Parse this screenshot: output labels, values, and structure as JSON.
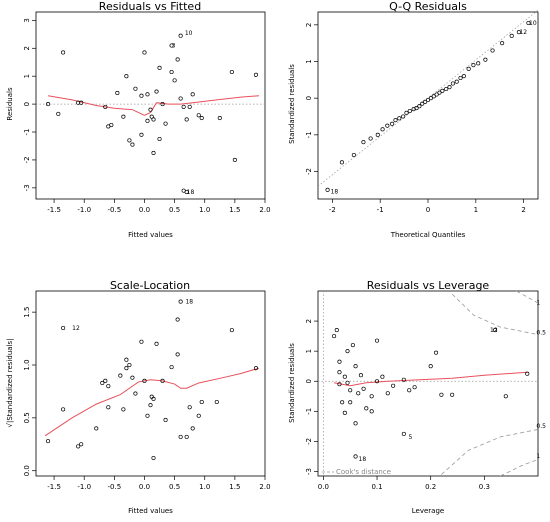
{
  "chart_data": [
    {
      "type": "scatter",
      "title": "Residuals vs Fitted",
      "xlabel": "Fitted values",
      "ylabel": "Residuals",
      "xlim": [
        -1.8,
        2.0
      ],
      "ylim": [
        -3.4,
        3.3
      ],
      "xticks": [
        -1.5,
        -1.0,
        -0.5,
        0.0,
        0.5,
        1.0,
        1.5,
        2.0
      ],
      "xtick_labels": [
        "-1.5",
        "-1.0",
        "-0.5",
        "0.0",
        "0.5",
        "1.0",
        "1.5",
        "2.0"
      ],
      "yticks": [
        -3,
        -2,
        -1,
        0,
        1,
        2,
        3
      ],
      "ytick_labels": [
        "-3",
        "-2",
        "-1",
        "0",
        "1",
        "2",
        "3"
      ],
      "refline": 0,
      "points": [
        [
          -1.6,
          0.0
        ],
        [
          -1.43,
          -0.35
        ],
        [
          -1.35,
          1.85
        ],
        [
          -1.1,
          0.05
        ],
        [
          -1.05,
          0.05
        ],
        [
          -0.65,
          -0.1
        ],
        [
          -0.6,
          -0.8
        ],
        [
          -0.55,
          -0.75
        ],
        [
          -0.45,
          0.4
        ],
        [
          -0.35,
          -0.45
        ],
        [
          -0.3,
          1.0
        ],
        [
          -0.25,
          -1.3
        ],
        [
          -0.2,
          -1.45
        ],
        [
          -0.15,
          0.55
        ],
        [
          -0.05,
          0.3
        ],
        [
          -0.05,
          -1.1
        ],
        [
          0.0,
          1.85
        ],
        [
          0.05,
          0.35
        ],
        [
          0.05,
          -0.6
        ],
        [
          0.1,
          -0.2
        ],
        [
          0.12,
          -0.45
        ],
        [
          0.15,
          -0.55
        ],
        [
          0.15,
          -1.75
        ],
        [
          0.2,
          0.45
        ],
        [
          0.25,
          -1.25
        ],
        [
          0.3,
          0.0
        ],
        [
          0.35,
          -0.7
        ],
        [
          0.45,
          1.15
        ],
        [
          0.5,
          0.85
        ],
        [
          0.55,
          1.6
        ],
        [
          0.6,
          0.2
        ],
        [
          0.65,
          -0.1
        ],
        [
          0.7,
          -0.55
        ],
        [
          0.75,
          -0.1
        ],
        [
          0.8,
          0.35
        ],
        [
          0.9,
          -0.4
        ],
        [
          0.95,
          -0.5
        ],
        [
          1.25,
          -0.5
        ],
        [
          1.45,
          1.15
        ],
        [
          1.5,
          -2.0
        ],
        [
          1.85,
          1.05
        ],
        [
          0.45,
          2.1
        ],
        [
          0.6,
          2.45
        ],
        [
          0.65,
          -3.1
        ],
        [
          0.7,
          -3.15
        ],
        [
          0.25,
          1.3
        ]
      ],
      "labels": [
        {
          "text": "10",
          "x": 0.62,
          "y": 2.55
        },
        {
          "text": "3",
          "x": 0.4,
          "y": 2.1
        },
        {
          "text": "18",
          "x": 0.65,
          "y": -3.15
        }
      ],
      "smooth": [
        [
          -1.6,
          0.3
        ],
        [
          -1.2,
          0.15
        ],
        [
          -0.8,
          -0.05
        ],
        [
          -0.5,
          -0.15
        ],
        [
          -0.2,
          -0.2
        ],
        [
          0.0,
          -0.4
        ],
        [
          0.1,
          -0.3
        ],
        [
          0.2,
          0.05
        ],
        [
          0.4,
          0.0
        ],
        [
          0.6,
          0.0
        ],
        [
          0.8,
          0.05
        ],
        [
          1.2,
          0.15
        ],
        [
          1.6,
          0.25
        ],
        [
          1.9,
          0.3
        ]
      ]
    },
    {
      "type": "scatter",
      "title": "Q-Q Residuals",
      "xlabel": "Theoretical Quantiles",
      "ylabel": "Standardized residuals",
      "xlim": [
        -2.3,
        2.3
      ],
      "ylim": [
        -2.75,
        2.35
      ],
      "xticks": [
        -2,
        -1,
        0,
        1,
        2
      ],
      "xtick_labels": [
        "-2",
        "-1",
        "0",
        "1",
        "2"
      ],
      "yticks": [
        -2,
        -1,
        0,
        1,
        2
      ],
      "ytick_labels": [
        "-2",
        "-1",
        "0",
        "1",
        "2"
      ],
      "points": [
        [
          -2.1,
          -2.5
        ],
        [
          -1.8,
          -1.75
        ],
        [
          -1.55,
          -1.55
        ],
        [
          -1.35,
          -1.2
        ],
        [
          -1.2,
          -1.1
        ],
        [
          -1.05,
          -1.0
        ],
        [
          -0.95,
          -0.85
        ],
        [
          -0.85,
          -0.75
        ],
        [
          -0.75,
          -0.7
        ],
        [
          -0.68,
          -0.6
        ],
        [
          -0.6,
          -0.55
        ],
        [
          -0.52,
          -0.5
        ],
        [
          -0.45,
          -0.4
        ],
        [
          -0.38,
          -0.35
        ],
        [
          -0.3,
          -0.3
        ],
        [
          -0.24,
          -0.27
        ],
        [
          -0.18,
          -0.22
        ],
        [
          -0.12,
          -0.15
        ],
        [
          -0.06,
          -0.1
        ],
        [
          0.0,
          -0.05
        ],
        [
          0.06,
          0.0
        ],
        [
          0.12,
          0.05
        ],
        [
          0.18,
          0.1
        ],
        [
          0.24,
          0.15
        ],
        [
          0.3,
          0.2
        ],
        [
          0.38,
          0.25
        ],
        [
          0.45,
          0.3
        ],
        [
          0.52,
          0.4
        ],
        [
          0.6,
          0.45
        ],
        [
          0.68,
          0.55
        ],
        [
          0.75,
          0.6
        ],
        [
          0.85,
          0.8
        ],
        [
          0.95,
          0.9
        ],
        [
          1.05,
          0.95
        ],
        [
          1.2,
          1.05
        ],
        [
          1.35,
          1.3
        ],
        [
          1.55,
          1.5
        ],
        [
          1.75,
          1.7
        ],
        [
          1.9,
          1.8
        ],
        [
          2.1,
          2.05
        ]
      ],
      "labels": [
        {
          "text": "18",
          "x": -2.1,
          "y": -2.55
        },
        {
          "text": "12",
          "x": 1.85,
          "y": 1.8
        },
        {
          "text": "10",
          "x": 2.05,
          "y": 2.05
        }
      ],
      "refline": [
        [
          -2.3,
          -2.4
        ],
        [
          2.3,
          2.4
        ]
      ]
    },
    {
      "type": "scatter",
      "title": "Scale-Location",
      "xlabel": "Fitted values",
      "ylabel": "√|Standardized residuals|",
      "xlim": [
        -1.8,
        2.0
      ],
      "ylim": [
        -0.05,
        1.7
      ],
      "xticks": [
        -1.5,
        -1.0,
        -0.5,
        0.0,
        0.5,
        1.0,
        1.5,
        2.0
      ],
      "xtick_labels": [
        "-1.5",
        "-1.0",
        "-0.5",
        "0.0",
        "0.5",
        "1.0",
        "1.5",
        "2.0"
      ],
      "yticks": [
        0.0,
        0.5,
        1.0,
        1.5
      ],
      "ytick_labels": [
        "0.0",
        "0.5",
        "1.0",
        "1.5"
      ],
      "points": [
        [
          -1.6,
          0.28
        ],
        [
          -1.35,
          0.58
        ],
        [
          -1.1,
          0.23
        ],
        [
          -1.05,
          0.25
        ],
        [
          -0.8,
          0.4
        ],
        [
          -0.7,
          0.83
        ],
        [
          -0.65,
          0.85
        ],
        [
          -0.6,
          0.8
        ],
        [
          -0.6,
          0.6
        ],
        [
          -0.4,
          0.9
        ],
        [
          -0.35,
          0.58
        ],
        [
          -0.3,
          0.97
        ],
        [
          -0.3,
          1.05
        ],
        [
          -0.25,
          1.0
        ],
        [
          -0.2,
          0.88
        ],
        [
          -0.15,
          0.73
        ],
        [
          -0.05,
          1.22
        ],
        [
          0.0,
          0.85
        ],
        [
          0.05,
          0.52
        ],
        [
          0.1,
          0.62
        ],
        [
          0.12,
          0.7
        ],
        [
          0.15,
          0.68
        ],
        [
          0.15,
          0.12
        ],
        [
          0.2,
          1.2
        ],
        [
          0.3,
          0.85
        ],
        [
          0.35,
          0.48
        ],
        [
          0.45,
          0.98
        ],
        [
          0.55,
          1.1
        ],
        [
          0.6,
          0.32
        ],
        [
          0.7,
          0.32
        ],
        [
          0.75,
          0.6
        ],
        [
          0.8,
          0.4
        ],
        [
          0.9,
          0.52
        ],
        [
          0.95,
          0.65
        ],
        [
          1.2,
          0.65
        ],
        [
          1.45,
          1.33
        ],
        [
          1.85,
          0.97
        ],
        [
          -1.35,
          1.35
        ],
        [
          0.6,
          1.6
        ],
        [
          0.55,
          1.43
        ]
      ],
      "labels": [
        {
          "text": "12",
          "x": -1.25,
          "y": 1.35
        },
        {
          "text": "18",
          "x": 0.63,
          "y": 1.6
        }
      ],
      "smooth": [
        [
          -1.65,
          0.33
        ],
        [
          -1.2,
          0.5
        ],
        [
          -0.8,
          0.63
        ],
        [
          -0.4,
          0.72
        ],
        [
          -0.1,
          0.84
        ],
        [
          0.1,
          0.86
        ],
        [
          0.3,
          0.85
        ],
        [
          0.5,
          0.82
        ],
        [
          0.6,
          0.78
        ],
        [
          0.7,
          0.78
        ],
        [
          0.9,
          0.83
        ],
        [
          1.3,
          0.88
        ],
        [
          1.6,
          0.92
        ],
        [
          1.9,
          0.97
        ]
      ]
    },
    {
      "type": "scatter",
      "title": "Residuals vs Leverage",
      "xlabel": "Leverage",
      "ylabel": "Standardized residuals",
      "xlim": [
        -0.01,
        0.4
      ],
      "ylim": [
        -3.15,
        3.0
      ],
      "xticks": [
        0.0,
        0.1,
        0.2,
        0.3
      ],
      "xtick_labels": [
        "0.0",
        "0.1",
        "0.2",
        "0.3"
      ],
      "yticks": [
        -3,
        -2,
        -1,
        0,
        1,
        2
      ],
      "ytick_labels": [
        "-3",
        "-2",
        "-1",
        "0",
        "1",
        "2"
      ],
      "points": [
        [
          0.02,
          1.5
        ],
        [
          0.025,
          1.7
        ],
        [
          0.03,
          0.65
        ],
        [
          0.03,
          0.3
        ],
        [
          0.035,
          -0.7
        ],
        [
          0.04,
          -1.05
        ],
        [
          0.04,
          0.15
        ],
        [
          0.045,
          1.0
        ],
        [
          0.05,
          -0.3
        ],
        [
          0.05,
          -0.7
        ],
        [
          0.055,
          1.2
        ],
        [
          0.06,
          0.5
        ],
        [
          0.06,
          -1.4
        ],
        [
          0.065,
          -0.4
        ],
        [
          0.07,
          0.2
        ],
        [
          0.075,
          -0.25
        ],
        [
          0.08,
          -0.9
        ],
        [
          0.09,
          -0.5
        ],
        [
          0.1,
          1.35
        ],
        [
          0.1,
          0.0
        ],
        [
          0.11,
          0.15
        ],
        [
          0.12,
          -0.4
        ],
        [
          0.13,
          -0.15
        ],
        [
          0.15,
          0.05
        ],
        [
          0.16,
          -0.3
        ],
        [
          0.17,
          -0.2
        ],
        [
          0.2,
          0.5
        ],
        [
          0.21,
          0.95
        ],
        [
          0.22,
          -0.45
        ],
        [
          0.24,
          -0.45
        ],
        [
          0.34,
          -0.5
        ],
        [
          0.38,
          0.25
        ],
        [
          0.32,
          1.7
        ],
        [
          0.15,
          -1.75
        ],
        [
          0.06,
          -2.5
        ],
        [
          0.09,
          -1.0
        ],
        [
          0.03,
          -0.1
        ],
        [
          0.045,
          -0.05
        ]
      ],
      "labels": [
        {
          "text": "12",
          "x": 0.305,
          "y": 1.7
        },
        {
          "text": "5",
          "x": 0.153,
          "y": -1.85
        },
        {
          "text": "18",
          "x": 0.06,
          "y": -2.58
        }
      ],
      "smooth": [
        [
          0.02,
          -0.05
        ],
        [
          0.05,
          -0.15
        ],
        [
          0.08,
          -0.05
        ],
        [
          0.12,
          0.0
        ],
        [
          0.18,
          0.05
        ],
        [
          0.24,
          0.1
        ],
        [
          0.3,
          0.2
        ],
        [
          0.38,
          0.3
        ]
      ],
      "cooks_upper": [
        [
          0.24,
          2.9
        ],
        [
          0.28,
          2.2
        ],
        [
          0.33,
          1.8
        ],
        [
          0.4,
          1.55
        ]
      ],
      "cooks_lower": [
        [
          0.22,
          -3.1
        ],
        [
          0.27,
          -2.3
        ],
        [
          0.33,
          -1.85
        ],
        [
          0.4,
          -1.6
        ]
      ],
      "cooks_upper2": [
        [
          0.36,
          3.0
        ],
        [
          0.38,
          2.8
        ],
        [
          0.4,
          2.6
        ]
      ],
      "cooks_lower2": [
        [
          0.33,
          -3.15
        ],
        [
          0.37,
          -2.8
        ],
        [
          0.4,
          -2.6
        ]
      ],
      "contour_labels": [
        {
          "text": "1",
          "x": 0.397,
          "y": 2.55
        },
        {
          "text": "0.5",
          "x": 0.397,
          "y": 1.55
        },
        {
          "text": "0.5",
          "x": 0.397,
          "y": -1.55
        },
        {
          "text": "1",
          "x": 0.397,
          "y": -2.55
        }
      ],
      "legend": "Cook's distance"
    }
  ]
}
